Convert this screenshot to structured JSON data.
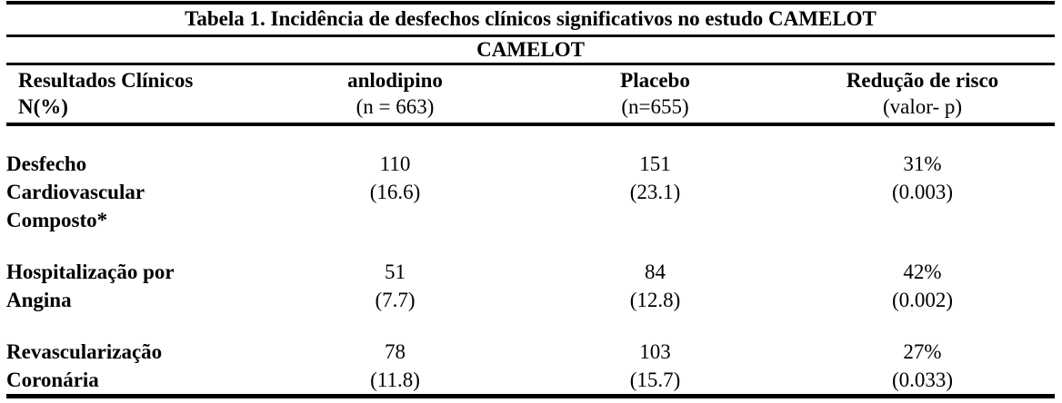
{
  "page": {
    "background_color": "#ffffff",
    "text_color": "#000000",
    "rule_color": "#000000"
  },
  "table": {
    "title": "Tabela 1. Incidência de desfechos clínicos significativos no estudo CAMELOT",
    "subtitle": "CAMELOT",
    "columns": [
      {
        "line1": "Resultados Clínicos",
        "line2": "N(%)"
      },
      {
        "line1": "anlodipino",
        "line2": "(n = 663)"
      },
      {
        "line1": "Placebo",
        "line2": "(n=655)"
      },
      {
        "line1": "Redução de risco",
        "line2": "(valor- p)"
      }
    ],
    "rows": [
      {
        "label": "Desfecho\nCardiovascular\nComposto*",
        "anlodipino": "110\n(16.6)",
        "placebo": "151\n(23.1)",
        "risk_reduction": "31%\n(0.003)"
      },
      {
        "label": "Hospitalização por\nAngina",
        "anlodipino": "51\n(7.7)",
        "placebo": "84\n(12.8)",
        "risk_reduction": "42%\n(0.002)"
      },
      {
        "label": "Revascularização\nCoronária",
        "anlodipino": "78\n(11.8)",
        "placebo": "103\n(15.7)",
        "risk_reduction": "27%\n(0.033)"
      }
    ]
  }
}
